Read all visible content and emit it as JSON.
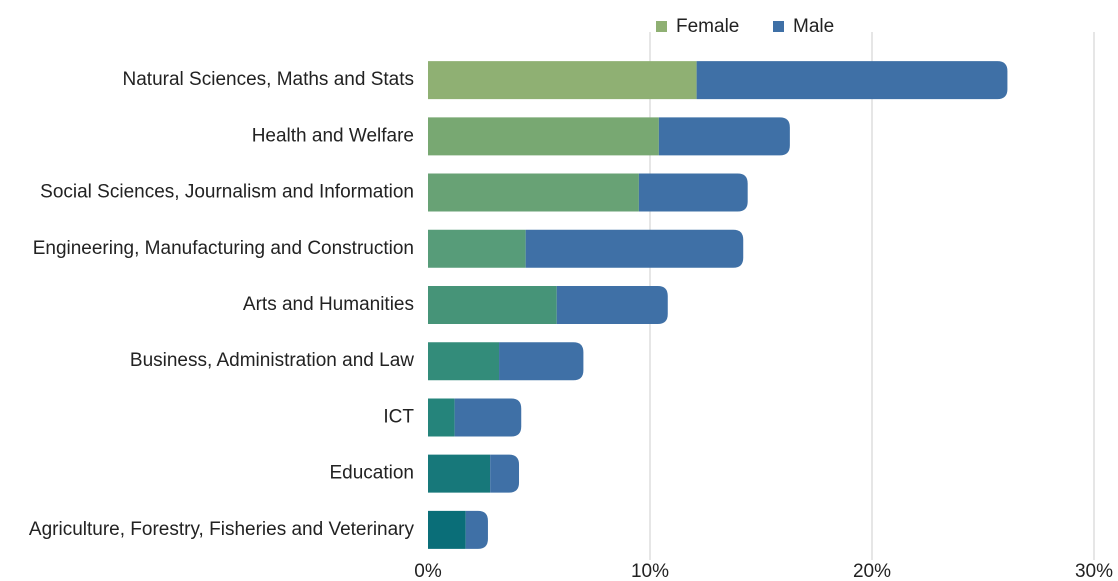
{
  "chart_data": {
    "type": "stacked_barh",
    "categories": [
      "Natural Sciences, Maths and Stats",
      "Health and Welfare",
      "Social Sciences, Journalism and Information",
      "Engineering, Manufacturing and Construction",
      "Arts and Humanities",
      "Business, Administration and Law",
      "ICT",
      "Education",
      "Agriculture, Forestry, Fisheries and Veterinary"
    ],
    "series": [
      {
        "name": "Female",
        "color": "#8fb073",
        "colors": [
          "#8fb073",
          "#78a872",
          "#68a275",
          "#579c79",
          "#469478",
          "#338c7a",
          "#25847b",
          "#17787a",
          "#0a6e78"
        ],
        "values": [
          12.1,
          10.4,
          9.5,
          4.4,
          5.8,
          3.2,
          1.2,
          2.8,
          1.7
        ]
      },
      {
        "name": "Male",
        "color": "#3f70a6",
        "values": [
          14.0,
          5.9,
          4.9,
          9.8,
          5.0,
          3.8,
          3.0,
          1.3,
          1.0
        ]
      }
    ],
    "xlim": [
      0,
      30
    ],
    "xticks": [
      {
        "value": 0,
        "label": "0%"
      },
      {
        "value": 10,
        "label": "10%"
      },
      {
        "value": 20,
        "label": "20%"
      },
      {
        "value": 30,
        "label": "30%"
      }
    ],
    "grid": true,
    "legend": "top"
  }
}
